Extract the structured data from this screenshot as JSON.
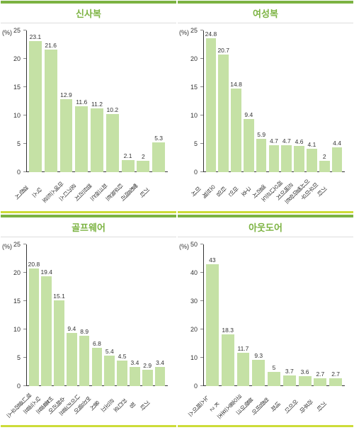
{
  "charts": [
    {
      "title": "신사복",
      "type": "bar",
      "bar_color": "#c5e1a5",
      "title_color": "#7cb342",
      "background_color": "#ffffff",
      "y_unit": "(%)",
      "ylim": [
        0,
        25
      ],
      "ytick_step": 5,
      "label_fontsize": 9,
      "value_fontsize": 8.5,
      "categories": [
        "갤럭시",
        "닥스",
        "마에스트로",
        "로가디스",
        "캠브리지",
        "파크랜드",
        "타운젠트",
        "빨질레리",
        "기타"
      ],
      "values": [
        23.1,
        21.6,
        12.9,
        11.6,
        11.2,
        10.2,
        2.1,
        2.0,
        5.3
      ]
    },
    {
      "title": "여성복",
      "type": "bar",
      "bar_color": "#c5e1a5",
      "title_color": "#7cb342",
      "background_color": "#ffffff",
      "y_unit": "(%)",
      "ylim": [
        0,
        25
      ],
      "ytick_step": 5,
      "label_fontsize": 9,
      "value_fontsize": 8.5,
      "categories": [
        "미샤",
        "오브제",
        "타임",
        "마인",
        "구호",
        "엘리사",
        "레오나르도",
        "르베이지",
        "이사벨마랑트",
        "미우미우",
        "기타"
      ],
      "values": [
        24.8,
        20.7,
        14.8,
        9.4,
        5.9,
        4.7,
        4.7,
        4.6,
        4.1,
        2.0,
        4.4
      ]
    },
    {
      "title": "골프웨어",
      "type": "bar",
      "bar_color": "#c5e1a5",
      "title_color": "#7cb342",
      "background_color": "#ffffff",
      "y_unit": "(%)",
      "ylim": [
        0,
        25
      ],
      "ytick_step": 5,
      "label_fontsize": 9,
      "value_fontsize": 8.5,
      "categories": [
        "잭니클라우스",
        "닥스골프",
        "빈폴골프",
        "슈페리어",
        "나이키골프",
        "먼싱웨어",
        "울시",
        "르꼬끄",
        "잔디로",
        "핑",
        "기타"
      ],
      "values": [
        20.8,
        19.4,
        15.1,
        9.4,
        8.9,
        6.8,
        5.4,
        4.5,
        3.4,
        2.9,
        3.4
      ]
    },
    {
      "title": "아웃도어",
      "type": "bar",
      "bar_color": "#c5e1a5",
      "title_color": "#7cb342",
      "background_color": "#ffffff",
      "y_unit": "(%)",
      "ylim": [
        0,
        50
      ],
      "ytick_step": 10,
      "label_fontsize": 9,
      "value_fontsize": 8.5,
      "categories": [
        "노스페이스",
        "K2",
        "코오롱스포츠",
        "블랙야크",
        "컬럼비아",
        "네파",
        "아이더",
        "라푸마",
        "기타"
      ],
      "values": [
        43.0,
        18.3,
        11.7,
        9.3,
        5.0,
        3.7,
        3.6,
        2.7,
        2.7
      ]
    }
  ]
}
